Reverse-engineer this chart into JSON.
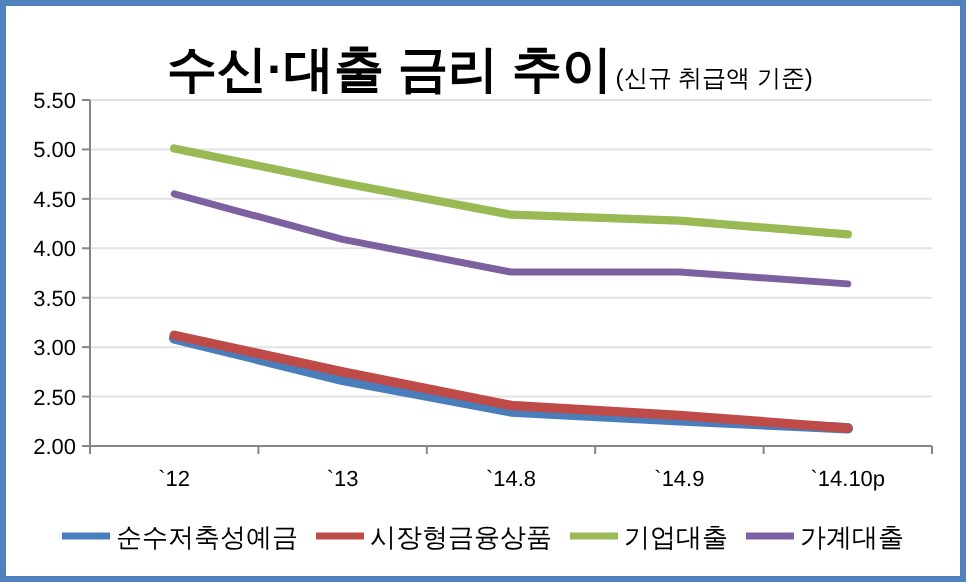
{
  "chart_data": {
    "type": "line",
    "title": "수신·대출 금리 추이",
    "subtitle": "(신규 취급액 기준)",
    "categories": [
      "`12",
      "`13",
      "`14.8",
      "`14.9",
      "`14.10p"
    ],
    "series": [
      {
        "name": "순수저축성예금",
        "color": "#4a7ebb",
        "values": [
          3.09,
          2.67,
          2.35,
          2.26,
          2.18
        ]
      },
      {
        "name": "시장형금융상품",
        "color": "#be4b48",
        "values": [
          3.12,
          2.75,
          2.41,
          2.31,
          2.18
        ]
      },
      {
        "name": "기업대출",
        "color": "#98b954",
        "values": [
          5.01,
          4.66,
          4.34,
          4.28,
          4.14
        ]
      },
      {
        "name": "가계대출",
        "color": "#7d60a0",
        "values": [
          4.55,
          4.09,
          3.76,
          3.76,
          3.64
        ]
      }
    ],
    "ylim": [
      2,
      5.5
    ],
    "yticks": [
      {
        "value": 2,
        "label": "2.00"
      },
      {
        "value": 2.5,
        "label": "2.50"
      },
      {
        "value": 3,
        "label": "3.00"
      },
      {
        "value": 3.5,
        "label": "3.50"
      },
      {
        "value": 4,
        "label": "4.00"
      },
      {
        "value": 4.5,
        "label": "4.50"
      },
      {
        "value": 5,
        "label": "5.00"
      },
      {
        "value": 5.5,
        "label": "5.50"
      }
    ],
    "grid": "y",
    "legend": "bottom",
    "marker": "none",
    "line_style": "solid"
  }
}
